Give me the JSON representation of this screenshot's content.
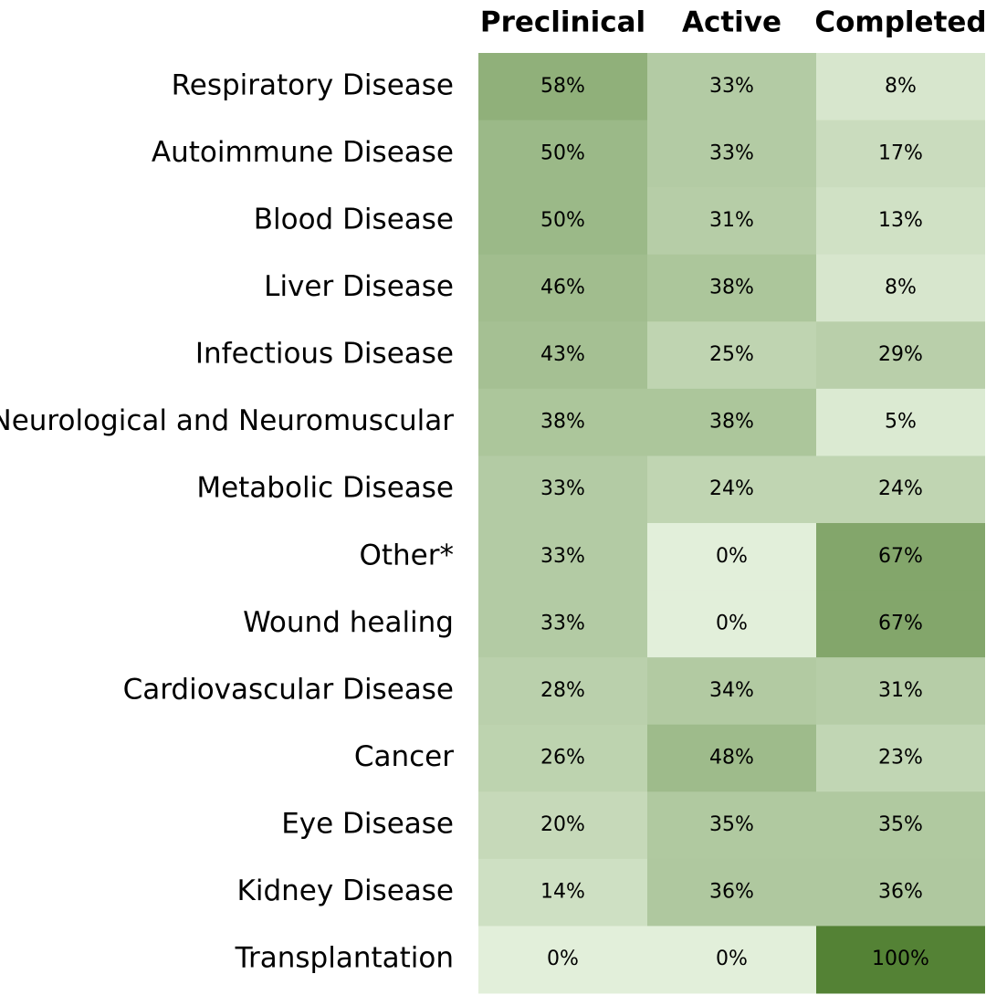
{
  "chart_data": {
    "type": "heatmap",
    "columns": [
      "Preclinical",
      "Active",
      "Completed"
    ],
    "rows": [
      {
        "label": "Respiratory Disease",
        "values": [
          58,
          33,
          8
        ]
      },
      {
        "label": "Autoimmune Disease",
        "values": [
          50,
          33,
          17
        ]
      },
      {
        "label": "Blood Disease",
        "values": [
          50,
          31,
          13
        ]
      },
      {
        "label": "Liver Disease",
        "values": [
          46,
          38,
          8
        ]
      },
      {
        "label": "Infectious Disease",
        "values": [
          43,
          25,
          29
        ]
      },
      {
        "label": "Neurological and Neuromuscular",
        "values": [
          38,
          38,
          5
        ]
      },
      {
        "label": "Metabolic Disease",
        "values": [
          33,
          24,
          24
        ]
      },
      {
        "label": "Other*",
        "values": [
          33,
          0,
          67
        ]
      },
      {
        "label": "Wound healing",
        "values": [
          33,
          0,
          67
        ]
      },
      {
        "label": "Cardiovascular Disease",
        "values": [
          28,
          34,
          31
        ]
      },
      {
        "label": "Cancer",
        "values": [
          26,
          48,
          23
        ]
      },
      {
        "label": "Eye Disease",
        "values": [
          20,
          35,
          35
        ]
      },
      {
        "label": "Kidney Disease",
        "values": [
          14,
          36,
          36
        ]
      },
      {
        "label": "Transplantation",
        "values": [
          0,
          0,
          100
        ]
      }
    ],
    "value_suffix": "%",
    "value_range": [
      0,
      100
    ],
    "color_low": "#e2efda",
    "color_high": "#548235"
  }
}
